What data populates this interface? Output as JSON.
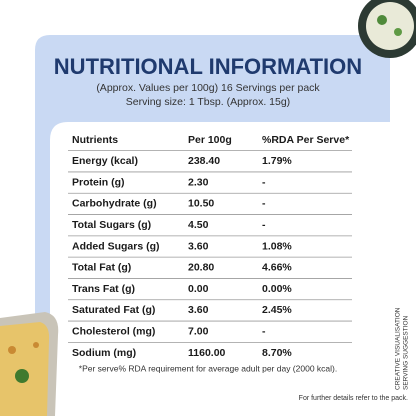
{
  "header": {
    "title": "NUTRITIONAL INFORMATION",
    "subtitle": [
      "(Approx. Values per 100g) 16 Servings per pack",
      "Serving size: 1 Tbsp. (Approx. 15g)"
    ]
  },
  "table": {
    "columns": [
      "Nutrients",
      "Per 100g",
      "%RDA Per Serve*"
    ],
    "rows": [
      [
        "Energy (kcal)",
        "238.40",
        "1.79%"
      ],
      [
        "Protein (g)",
        "2.30",
        "-"
      ],
      [
        "Carbohydrate (g)",
        "10.50",
        "-"
      ],
      [
        "Total Sugars (g)",
        "4.50",
        "-"
      ],
      [
        "Added Sugars (g)",
        "3.60",
        "1.08%"
      ],
      [
        "Total Fat (g)",
        "20.80",
        "4.66%"
      ],
      [
        "Trans Fat (g)",
        "0.00",
        "0.00%"
      ],
      [
        "Saturated Fat (g)",
        "3.60",
        "2.45%"
      ],
      [
        "Cholesterol (mg)",
        "7.00",
        "-"
      ],
      [
        "Sodium (mg)",
        "1160.00",
        "8.70%"
      ]
    ]
  },
  "footnote": "*Per serve% RDA requirement for average adult per day (2000 kcal).",
  "side_note": [
    "CREATIVE VISUALISATION",
    "SERVING SUGGESTION"
  ],
  "footer": "For further details refer to the pack."
}
